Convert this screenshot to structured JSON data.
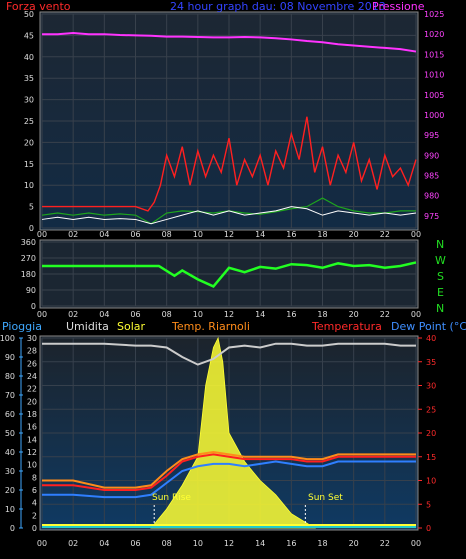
{
  "header": {
    "left_label": "Forza vento",
    "center_label": "24 hour graph dau: 08 Novembre 2013",
    "right_label": "Pressione"
  },
  "panel2": {
    "direction_labels": [
      "N",
      "W",
      "S",
      "E",
      "N"
    ]
  },
  "panel3": {
    "labels": {
      "pioggia": "Pioggia",
      "umidita": "Umidita",
      "solar": "Solar",
      "temp_riarnoli": "Temp. Riarnoli",
      "temperatura": "Temperatura",
      "dew_point": "Dew Point (°C)"
    },
    "annotations": {
      "sun_rise": "Sun Rise",
      "sun_set": "Sun Set"
    }
  },
  "chart_data": [
    {
      "type": "line",
      "name": "wind_pressure",
      "x_ticks": [
        "00",
        "02",
        "04",
        "06",
        "08",
        "10",
        "12",
        "14",
        "16",
        "18",
        "20",
        "22",
        "00"
      ],
      "y_left_ticks": [
        0,
        5,
        10,
        15,
        20,
        25,
        30,
        35,
        40,
        45,
        50
      ],
      "y_right_ticks": [
        975,
        980,
        985,
        990,
        995,
        1000,
        1005,
        1010,
        1015,
        1020,
        1025
      ],
      "ylim_left": [
        0,
        50
      ],
      "ylim_right": [
        972,
        1025
      ],
      "pressure": {
        "x": [
          0,
          1,
          2,
          3,
          4,
          5,
          6,
          7,
          8,
          9,
          10,
          11,
          12,
          13,
          14,
          15,
          16,
          17,
          18,
          19,
          20,
          21,
          22,
          23,
          24
        ],
        "y": [
          1020,
          1020,
          1020.3,
          1020,
          1020,
          1019.8,
          1019.7,
          1019.6,
          1019.4,
          1019.4,
          1019.3,
          1019.2,
          1019.2,
          1019.3,
          1019.2,
          1019,
          1018.7,
          1018.3,
          1018,
          1017.5,
          1017.2,
          1016.9,
          1016.6,
          1016.3,
          1015.7
        ]
      },
      "wind_gust": {
        "x": [
          0,
          1,
          2,
          3,
          4,
          5,
          6,
          6.8,
          7.2,
          7.6,
          8,
          8.5,
          9,
          9.5,
          10,
          10.5,
          11,
          11.5,
          12,
          12.5,
          13,
          13.5,
          14,
          14.5,
          15,
          15.5,
          16,
          16.5,
          17,
          17.5,
          18,
          18.5,
          19,
          19.5,
          20,
          20.5,
          21,
          21.5,
          22,
          22.5,
          23,
          23.5,
          24
        ],
        "y": [
          5,
          5,
          5,
          5,
          5,
          5,
          5,
          4,
          6,
          10,
          17,
          12,
          19,
          10,
          18,
          12,
          17,
          13,
          21,
          10,
          16,
          12,
          17,
          10,
          18,
          14,
          22,
          16,
          26,
          13,
          19,
          10,
          17,
          13,
          20,
          11,
          16,
          9,
          17,
          12,
          14,
          10,
          16
        ]
      },
      "wind_avg": {
        "x": [
          0,
          1,
          2,
          3,
          4,
          5,
          6,
          7,
          7.5,
          8,
          9,
          10,
          11,
          12,
          13,
          14,
          15,
          16,
          17,
          18,
          19,
          20,
          21,
          22,
          23,
          24
        ],
        "y": [
          2,
          2.5,
          2,
          2.5,
          2,
          2.2,
          2,
          1,
          1.5,
          2,
          3,
          4,
          3,
          4,
          3,
          3.5,
          4,
          5,
          4.5,
          3,
          4,
          3.5,
          3,
          3.5,
          3,
          3.5
        ]
      },
      "wind_green": {
        "x": [
          0,
          1,
          2,
          3,
          4,
          5,
          6,
          7,
          8,
          9,
          10,
          11,
          12,
          13,
          14,
          15,
          16,
          17,
          18,
          19,
          20,
          21,
          22,
          23,
          24
        ],
        "y": [
          3,
          3.5,
          3,
          3.5,
          3,
          3.3,
          3,
          1,
          3.5,
          4,
          3.8,
          3.5,
          4,
          3.5,
          3.2,
          3.8,
          4.5,
          5,
          7,
          5,
          4,
          3.5,
          3.5,
          4,
          4
        ]
      }
    },
    {
      "type": "scatter",
      "name": "wind_direction",
      "x_ticks": [
        "00",
        "02",
        "04",
        "06",
        "08",
        "10",
        "12",
        "14",
        "16",
        "18",
        "20",
        "22",
        "00"
      ],
      "y_ticks": [
        0,
        90,
        180,
        270,
        360
      ],
      "ylim": [
        0,
        360
      ],
      "direction": {
        "x": [
          0,
          2,
          4,
          6,
          7.5,
          8.5,
          9,
          10,
          11,
          12,
          13,
          14,
          15,
          16,
          17,
          18,
          19,
          20,
          21,
          22,
          23,
          24
        ],
        "y": [
          225,
          225,
          225,
          225,
          225,
          170,
          200,
          150,
          110,
          215,
          190,
          220,
          210,
          235,
          230,
          215,
          240,
          225,
          230,
          215,
          225,
          245
        ]
      }
    },
    {
      "type": "line",
      "name": "rain_humidity_temperature",
      "x_ticks": [
        "00",
        "02",
        "04",
        "06",
        "08",
        "10",
        "12",
        "14",
        "16",
        "18",
        "20",
        "22",
        "00"
      ],
      "y_left_rain_ticks": [
        0,
        10,
        20,
        30,
        40,
        50,
        60,
        70,
        80,
        90,
        100
      ],
      "y_left2_ticks": [
        0,
        2,
        4,
        6,
        8,
        10,
        12,
        14,
        16,
        18,
        20,
        22,
        24,
        26,
        28,
        30
      ],
      "y_right_ticks": [
        0,
        5,
        10,
        15,
        20,
        25,
        30,
        35,
        40
      ],
      "ylim_temp": [
        0,
        40
      ],
      "humidity": {
        "x": [
          0,
          2,
          4,
          6,
          7,
          8,
          9,
          10,
          11,
          12,
          13,
          14,
          15,
          16,
          17,
          18,
          19,
          20,
          21,
          22,
          23,
          24
        ],
        "y": [
          97,
          97,
          97,
          96,
          96,
          95,
          90,
          86,
          89,
          95,
          96,
          95,
          97,
          97,
          96,
          96,
          97,
          97,
          97,
          97,
          96,
          96
        ]
      },
      "temp_riarnoli": {
        "x": [
          0,
          2,
          4,
          5,
          6,
          7,
          8,
          9,
          10,
          11,
          12,
          13,
          14,
          15,
          16,
          17,
          18,
          19,
          20,
          21,
          22,
          23,
          24
        ],
        "y": [
          10,
          10,
          8.5,
          8.5,
          8.5,
          9,
          12,
          14.5,
          15.5,
          16,
          15.5,
          15,
          15,
          15,
          15,
          14.5,
          14.5,
          15.5,
          15.5,
          15.5,
          15.5,
          15.5,
          15.5
        ]
      },
      "temperatura": {
        "x": [
          0,
          2,
          4,
          5,
          6,
          7,
          8,
          9,
          10,
          11,
          12,
          13,
          14,
          15,
          16,
          17,
          18,
          19,
          20,
          21,
          22,
          23,
          24
        ],
        "y": [
          9,
          9,
          8,
          8,
          8,
          8.5,
          11,
          14,
          15,
          15.5,
          15,
          14.5,
          14.5,
          14.5,
          14.5,
          14,
          14,
          15,
          15,
          15,
          15,
          15,
          15
        ]
      },
      "dew_point": {
        "x": [
          0,
          2,
          4,
          5,
          6,
          7,
          8,
          9,
          10,
          11,
          12,
          13,
          14,
          15,
          16,
          17,
          18,
          19,
          20,
          21,
          22,
          23,
          24
        ],
        "y": [
          7,
          7,
          6.5,
          6.5,
          6.5,
          7,
          9.5,
          12,
          13,
          13.5,
          13.5,
          13,
          13.5,
          14,
          13.5,
          13,
          13,
          14,
          14,
          14,
          14,
          14,
          14
        ]
      },
      "solar": {
        "x": [
          7,
          8,
          9,
          10,
          10.5,
          11,
          11.3,
          11.6,
          12,
          13,
          14,
          15,
          16,
          17,
          17.5
        ],
        "y": [
          0,
          4,
          9,
          15,
          30,
          38,
          40,
          35,
          20,
          14,
          10,
          7,
          3,
          1,
          0
        ]
      },
      "rain": {
        "x": [
          0,
          24
        ],
        "y": [
          0,
          0
        ]
      }
    }
  ]
}
